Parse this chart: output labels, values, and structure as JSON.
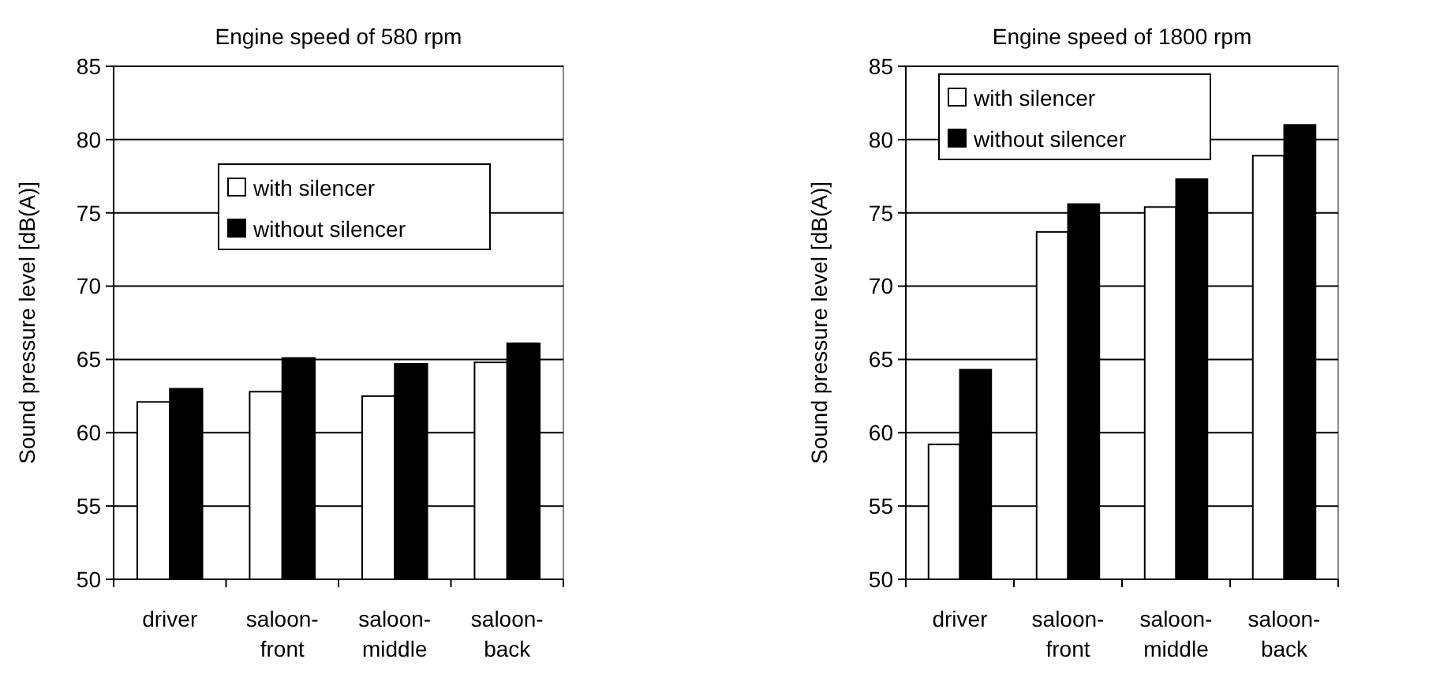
{
  "chart_data": [
    {
      "type": "bar",
      "title": "Engine speed of 580 rpm",
      "ylabel": "Sound pressure level [dB(A)]",
      "categories": [
        "driver",
        "saloon-front",
        "saloon-middle",
        "saloon-back"
      ],
      "series": [
        {
          "name": "with silencer",
          "color": "#ffffff",
          "values": [
            62.1,
            62.8,
            62.5,
            64.8
          ]
        },
        {
          "name": "without silencer",
          "color": "#000000",
          "values": [
            63.0,
            65.1,
            64.7,
            66.1
          ]
        }
      ],
      "ylim": [
        50,
        85
      ],
      "yticks": [
        50,
        55,
        60,
        65,
        70,
        75,
        80,
        85
      ],
      "grid": "y",
      "legend": "top"
    },
    {
      "type": "bar",
      "title": "Engine speed of 1800 rpm",
      "ylabel": "Sound pressure level [dB(A)]",
      "categories": [
        "driver",
        "saloon-front",
        "saloon-middle",
        "saloon-back"
      ],
      "series": [
        {
          "name": "with silencer",
          "color": "#ffffff",
          "values": [
            59.2,
            73.7,
            75.4,
            78.9
          ]
        },
        {
          "name": "without silencer",
          "color": "#000000",
          "values": [
            64.3,
            75.6,
            77.3,
            81.0
          ]
        }
      ],
      "ylim": [
        50,
        85
      ],
      "yticks": [
        50,
        55,
        60,
        65,
        70,
        75,
        80,
        85
      ],
      "grid": "y",
      "legend": "top"
    }
  ]
}
